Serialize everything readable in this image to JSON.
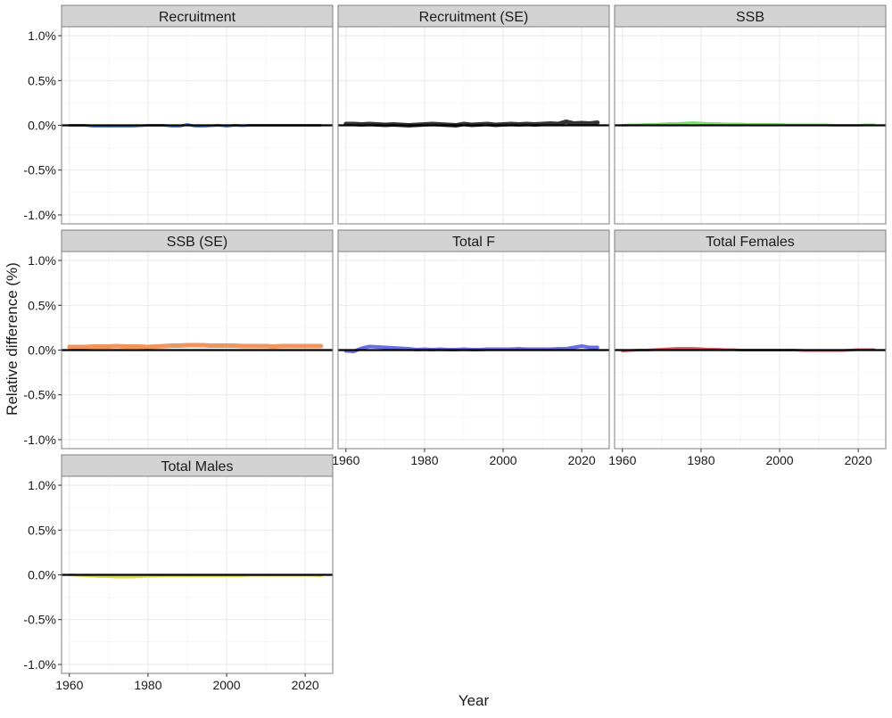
{
  "chart_data": {
    "type": "line",
    "layout": "facet-grid 3 columns x 3 rows",
    "xlabel": "Year",
    "ylabel": "Relative difference (%)",
    "xlim": [
      1958,
      2027
    ],
    "ylim": [
      -1.1,
      1.1
    ],
    "x_ticks": [
      1960,
      1980,
      2000,
      2020
    ],
    "x_tick_labels": [
      "1960",
      "1980",
      "2000",
      "2020"
    ],
    "y_ticks": [
      1.0,
      0.5,
      0.0,
      -0.5,
      -1.0
    ],
    "y_tick_labels": [
      "1.0%",
      "0.5%",
      "0.0%",
      "-0.5%",
      "-1.0%"
    ],
    "reference_line": 0,
    "grid": true,
    "years": [
      1960,
      1962,
      1964,
      1966,
      1968,
      1970,
      1972,
      1974,
      1976,
      1978,
      1980,
      1982,
      1984,
      1986,
      1988,
      1990,
      1992,
      1994,
      1996,
      1998,
      2000,
      2002,
      2004,
      2006,
      2008,
      2010,
      2012,
      2014,
      2016,
      2018,
      2020,
      2022,
      2024
    ],
    "panels": [
      {
        "title": "Recruitment",
        "color": "#3f6fbf",
        "line_width": 3,
        "values": [
          0.0,
          0.0,
          0.0,
          -0.01,
          -0.01,
          -0.01,
          -0.01,
          -0.01,
          -0.01,
          -0.005,
          0.0,
          0.0,
          0.0,
          -0.01,
          -0.01,
          0.01,
          -0.01,
          -0.01,
          -0.005,
          0.0,
          -0.01,
          0.0,
          -0.005,
          0.0,
          0.0,
          0.0,
          0.0,
          0.0,
          0.0,
          0.0,
          0.0,
          0.0,
          0.0
        ]
      },
      {
        "title": "Recruitment (SE)",
        "color": "#1f1f1f",
        "line_width": 5,
        "values": [
          0.015,
          0.015,
          0.01,
          0.015,
          0.01,
          0.005,
          0.01,
          0.005,
          0.0,
          0.005,
          0.01,
          0.015,
          0.01,
          0.005,
          0.0,
          0.015,
          0.005,
          0.01,
          0.015,
          0.005,
          0.01,
          0.015,
          0.01,
          0.015,
          0.01,
          0.015,
          0.02,
          0.015,
          0.04,
          0.02,
          0.025,
          0.02,
          0.03
        ]
      },
      {
        "title": "SSB",
        "color": "#6fdc5c",
        "line_width": 3,
        "values": [
          0.0,
          0.005,
          0.005,
          0.01,
          0.01,
          0.015,
          0.02,
          0.02,
          0.025,
          0.03,
          0.025,
          0.02,
          0.02,
          0.015,
          0.015,
          0.015,
          0.01,
          0.01,
          0.01,
          0.01,
          0.01,
          0.005,
          0.005,
          0.005,
          0.005,
          0.005,
          0.005,
          0.0,
          0.0,
          0.0,
          0.0,
          0.005,
          0.005
        ]
      },
      {
        "title": "SSB (SE)",
        "color": "#ee8a4a",
        "line_width": 5,
        "values": [
          0.035,
          0.035,
          0.035,
          0.04,
          0.04,
          0.04,
          0.045,
          0.04,
          0.04,
          0.04,
          0.035,
          0.04,
          0.045,
          0.05,
          0.05,
          0.055,
          0.055,
          0.055,
          0.05,
          0.05,
          0.05,
          0.05,
          0.045,
          0.045,
          0.045,
          0.045,
          0.04,
          0.045,
          0.045,
          0.045,
          0.045,
          0.045,
          0.045
        ]
      },
      {
        "title": "Total F",
        "color": "#5a5ee0",
        "line_width": 4,
        "values": [
          -0.01,
          -0.015,
          0.02,
          0.04,
          0.035,
          0.03,
          0.025,
          0.02,
          0.015,
          0.005,
          0.01,
          0.005,
          0.01,
          0.005,
          0.005,
          0.01,
          0.005,
          0.005,
          0.01,
          0.01,
          0.01,
          0.01,
          0.015,
          0.01,
          0.01,
          0.01,
          0.01,
          0.015,
          0.015,
          0.03,
          0.045,
          0.03,
          0.03
        ]
      },
      {
        "title": "Total Females",
        "color": "#dc4a55",
        "line_width": 3,
        "values": [
          -0.01,
          -0.005,
          0.0,
          0.0,
          0.005,
          0.01,
          0.015,
          0.02,
          0.02,
          0.02,
          0.015,
          0.01,
          0.01,
          0.005,
          0.005,
          0.0,
          0.0,
          0.0,
          0.0,
          0.0,
          0.0,
          0.0,
          0.0,
          -0.005,
          -0.005,
          -0.005,
          -0.005,
          -0.005,
          -0.005,
          0.0,
          0.005,
          0.005,
          0.005
        ]
      },
      {
        "title": "Total Males",
        "color": "#d4d63c",
        "line_width": 3,
        "values": [
          0.0,
          -0.005,
          -0.01,
          -0.015,
          -0.02,
          -0.02,
          -0.025,
          -0.025,
          -0.025,
          -0.02,
          -0.015,
          -0.015,
          -0.01,
          -0.01,
          -0.01,
          -0.01,
          -0.01,
          -0.01,
          -0.01,
          -0.01,
          -0.01,
          -0.01,
          -0.01,
          -0.005,
          -0.005,
          -0.005,
          -0.005,
          -0.005,
          -0.005,
          -0.005,
          -0.005,
          -0.005,
          -0.01
        ]
      }
    ]
  }
}
